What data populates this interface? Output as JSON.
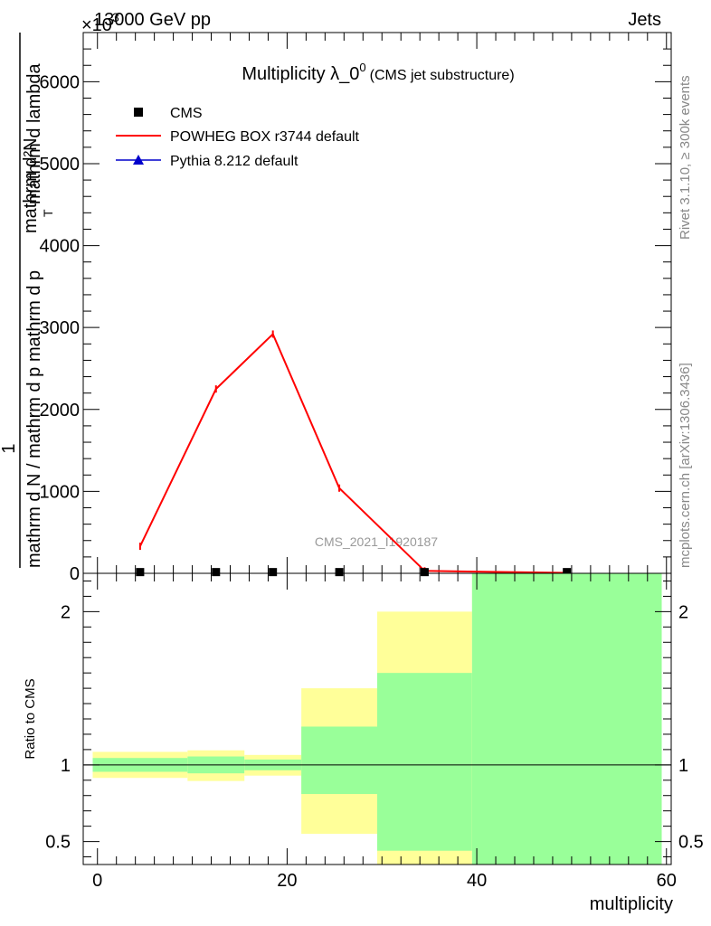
{
  "header": {
    "left": "13000 GeV pp",
    "right": "Jets",
    "exponent_base": "×10",
    "exponent_power": "3"
  },
  "side_labels": {
    "rivet": "Rivet 3.1.10, ≥ 300k events",
    "mcplots": "mcplots.cern.ch [arXiv:1306.3436]"
  },
  "watermark": "CMS_2021_I1920187",
  "chart_data": [
    {
      "type": "line",
      "title_main": "Multiplicity λ_0",
      "title_sup": "0",
      "title_sub": "(CMS jet substructure)",
      "ylabel_top": "1",
      "ylabel_num": "mathrm d²N",
      "ylabel_den": "mathrm d N / mathrm d p_T mathrm d p_T mathrm d lambda",
      "ylabel_fraction_num": "mathrm d",
      "ylabel_fraction_den": "mathrm d N / mathrm d p",
      "ylabel_lines": [
        "1",
        "mathrm d²N",
        "mathrm d N / mathrm d p",
        "mathrm d p",
        "T",
        "mathrm d lambda"
      ],
      "ylim": [
        0,
        6600
      ],
      "y_ticks": [
        0,
        1000,
        2000,
        3000,
        4000,
        5000,
        6000
      ],
      "y_tick_labels": [
        "0",
        "1000",
        "2000",
        "3000",
        "4000",
        "5000",
        "6000"
      ],
      "xlim": [
        -1.5,
        60.5
      ],
      "legend": [
        {
          "name": "CMS",
          "marker": "square",
          "color": "#000000"
        },
        {
          "name": "POWHEG BOX r3744 default",
          "marker": "line",
          "color": "#ff0000"
        },
        {
          "name": "Pythia 8.212 default",
          "marker": "triangle",
          "color": "#0000cc"
        }
      ],
      "series": [
        {
          "name": "CMS",
          "x": [
            4.5,
            12.5,
            18.5,
            25.5,
            34.5,
            49.5
          ],
          "values": [
            15,
            15,
            15,
            15,
            15,
            15
          ]
        },
        {
          "name": "POWHEG BOX r3744 default",
          "x": [
            4.5,
            12.5,
            18.5,
            25.5,
            34.5,
            49.5
          ],
          "values": [
            330,
            2250,
            2920,
            1040,
            30,
            5
          ]
        },
        {
          "name": "Pythia 8.212 default",
          "x": [
            4.5,
            12.5,
            18.5,
            25.5,
            34.5,
            49.5
          ],
          "values": [
            10,
            10,
            10,
            10,
            10,
            10
          ]
        }
      ]
    },
    {
      "type": "area",
      "ylabel": "Ratio to CMS",
      "xlabel": "multiplicity",
      "xlim": [
        -1.5,
        60.5
      ],
      "ylim": [
        0.35,
        2.25
      ],
      "x_ticks": [
        0,
        20,
        40,
        60
      ],
      "x_tick_labels": [
        "0",
        "20",
        "40",
        "60"
      ],
      "y_ticks": [
        0.5,
        1,
        2
      ],
      "y_tick_labels": [
        "0.5",
        "1",
        "2"
      ],
      "reference_line": 1,
      "bins": [
        {
          "x0": -0.5,
          "x1": 9.5,
          "green": [
            0.955,
            1.045
          ],
          "yellow": [
            0.915,
            1.085
          ]
        },
        {
          "x0": 9.5,
          "x1": 15.5,
          "green": [
            0.945,
            1.055
          ],
          "yellow": [
            0.895,
            1.095
          ]
        },
        {
          "x0": 15.5,
          "x1": 21.5,
          "green": [
            0.965,
            1.035
          ],
          "yellow": [
            0.93,
            1.065
          ]
        },
        {
          "x0": 21.5,
          "x1": 29.5,
          "green": [
            0.81,
            1.25
          ],
          "yellow": [
            0.55,
            1.5
          ]
        },
        {
          "x0": 29.5,
          "x1": 39.5,
          "green": [
            0.44,
            1.6
          ],
          "yellow": [
            0.35,
            2.0
          ]
        },
        {
          "x0": 39.5,
          "x1": 59.5,
          "green": [
            0.35,
            2.25
          ],
          "yellow": [
            0.35,
            2.25
          ]
        }
      ]
    }
  ]
}
